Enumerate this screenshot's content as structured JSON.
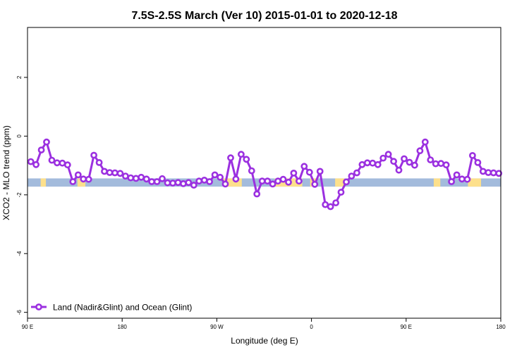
{
  "chart_data": {
    "type": "line",
    "title": "7.5S-2.5S March (Ver 10)   2015-01-01 to 2020-12-18",
    "xlabel": "Longitude (deg E)",
    "ylabel": "XCO2 - MLO trend (ppm)",
    "xlim": [
      90,
      450
    ],
    "ylim": [
      -6.2,
      3.7
    ],
    "x_ticks": [
      {
        "value": 90,
        "label": "90 E"
      },
      {
        "value": 162,
        "label": "180"
      },
      {
        "value": 234,
        "label": "90 W"
      },
      {
        "value": 306,
        "label": "0"
      },
      {
        "value": 378,
        "label": "90 E"
      },
      {
        "value": 450,
        "label": "180"
      }
    ],
    "y_ticks": [
      {
        "value": 2,
        "label": "2"
      },
      {
        "value": 0,
        "label": "0"
      },
      {
        "value": -2,
        "label": "-2"
      },
      {
        "value": -4,
        "label": "-4"
      },
      {
        "value": -6,
        "label": "-6"
      }
    ],
    "grid": false,
    "legend_position": "bottom-left",
    "surface_band": {
      "y_range": [
        -1.72,
        -1.44
      ],
      "ocean_color": "#a3bbdc",
      "land_color": "#fde08c",
      "land_segments": [
        [
          100,
          104
        ],
        [
          128,
          134
        ],
        [
          239,
          253
        ],
        [
          278,
          299
        ],
        [
          305,
          310
        ],
        [
          324,
          331
        ],
        [
          399,
          404
        ],
        [
          425,
          435
        ]
      ]
    },
    "series": [
      {
        "name": "Land (Nadir&Glint) and Ocean (Glint)",
        "color": "#9b30e0",
        "x": [
          92.5,
          96.5,
          100.5,
          104.5,
          108.5,
          112.5,
          116.5,
          120.5,
          124.5,
          128.5,
          132.5,
          136.5,
          140.5,
          144.5,
          148.5,
          152.5,
          156.5,
          160.5,
          164.5,
          168.5,
          172.5,
          176.5,
          180.5,
          184.5,
          188.5,
          192.5,
          196.5,
          200.5,
          204.5,
          208.5,
          212.5,
          216.5,
          220.5,
          224.5,
          228.5,
          232.5,
          236.5,
          240.5,
          244.5,
          248.5,
          252.5,
          256.5,
          260.5,
          264.5,
          268.5,
          272.5,
          276.5,
          280.5,
          284.5,
          288.5,
          292.5,
          296.5,
          300.5,
          304.5,
          308.5,
          312.5,
          316.5,
          320.5,
          324.5,
          328.5,
          332.5,
          336.5,
          340.5,
          344.5,
          348.5,
          352.5,
          356.5,
          360.5,
          364.5,
          368.5,
          372.5,
          376.5,
          380.5,
          384.5,
          388.5,
          392.5,
          396.5,
          400.5,
          404.5,
          408.5,
          412.5,
          416.5,
          420.5,
          424.5,
          428.5,
          432.5,
          436.5,
          440.5,
          444.5,
          448.5
        ],
        "y": [
          -0.87,
          -0.97,
          -0.47,
          -0.2,
          -0.82,
          -0.91,
          -0.92,
          -0.98,
          -1.55,
          -1.32,
          -1.46,
          -1.47,
          -0.65,
          -0.9,
          -1.2,
          -1.24,
          -1.25,
          -1.27,
          -1.36,
          -1.42,
          -1.44,
          -1.4,
          -1.46,
          -1.55,
          -1.55,
          -1.45,
          -1.59,
          -1.6,
          -1.58,
          -1.62,
          -1.58,
          -1.67,
          -1.53,
          -1.5,
          -1.55,
          -1.32,
          -1.4,
          -1.63,
          -0.74,
          -1.46,
          -0.62,
          -0.79,
          -1.18,
          -1.97,
          -1.53,
          -1.53,
          -1.63,
          -1.53,
          -1.47,
          -1.57,
          -1.26,
          -1.53,
          -1.03,
          -1.23,
          -1.64,
          -1.2,
          -2.33,
          -2.4,
          -2.27,
          -1.91,
          -1.56,
          -1.36,
          -1.25,
          -0.97,
          -0.91,
          -0.92,
          -0.97,
          -0.75,
          -0.62,
          -0.86,
          -1.16,
          -0.77,
          -0.89,
          -0.99,
          -0.5,
          -0.2,
          -0.81,
          -0.94,
          -0.93,
          -0.98,
          -1.55,
          -1.32,
          -1.46,
          -1.47,
          -0.66,
          -0.9,
          -1.2,
          -1.24,
          -1.25,
          -1.27
        ]
      }
    ]
  }
}
